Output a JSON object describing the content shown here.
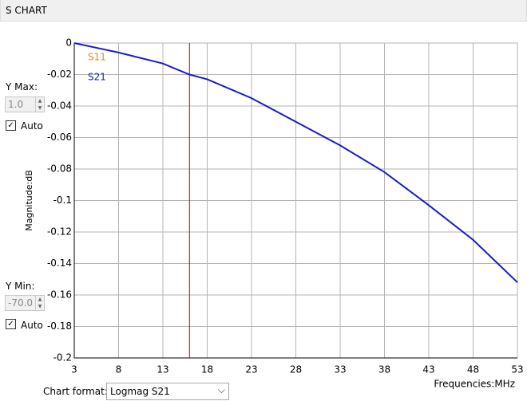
{
  "panel": {
    "title": "S CHART"
  },
  "controls": {
    "y_max_label": "Y Max:",
    "y_max_value": "1.0",
    "y_max_auto": "Auto",
    "y_min_label": "Y Min:",
    "y_min_value": "-70.0",
    "y_min_auto": "Auto",
    "format_label": "Chart format:",
    "format_value": "Logmag S21"
  },
  "chart_data": {
    "type": "line",
    "y_label": "Magnitude:dB",
    "x_label": "Frequencies:MHz",
    "x": [
      3,
      8,
      13,
      16,
      18,
      23,
      28,
      33,
      38,
      43,
      48,
      53
    ],
    "series": [
      {
        "name": "S11",
        "color": "#e08a1e",
        "values": [
          null,
          null,
          null,
          null,
          null,
          null,
          null,
          null,
          null,
          null,
          null,
          null
        ]
      },
      {
        "name": "S21",
        "color": "#1a1acc",
        "values": [
          0,
          -0.006,
          -0.013,
          -0.02,
          -0.023,
          -0.035,
          -0.05,
          -0.065,
          -0.082,
          -0.103,
          -0.125,
          -0.152
        ]
      }
    ],
    "xlim": [
      3,
      53
    ],
    "xticks": [
      3,
      8,
      13,
      18,
      23,
      28,
      33,
      38,
      43,
      48,
      53
    ],
    "ylim": [
      -0.2,
      0
    ],
    "yticks": [
      0,
      -0.02,
      -0.04,
      -0.06,
      -0.08,
      -0.1,
      -0.12,
      -0.14,
      -0.16,
      -0.18,
      -0.2
    ],
    "grid": true,
    "marker_x": 16,
    "marker_color": "#cc0000"
  }
}
